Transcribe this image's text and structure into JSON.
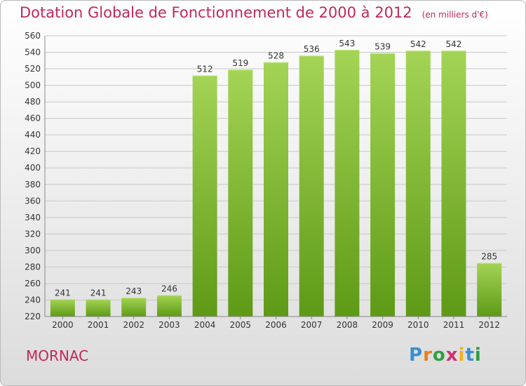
{
  "title": "Dotation Globale de Fonctionnement de 2000 à 2012",
  "unit": "(en milliers d'€)",
  "commune": "MORNAC",
  "logo": {
    "letters": [
      "P",
      "r",
      "o",
      "x",
      "i",
      "t",
      "i"
    ],
    "colors": [
      "#3a8fd0",
      "#e87f1a",
      "#2e9e44",
      "#d22f6e",
      "#f2b01e",
      "#3a8fd0",
      "#2e9e44"
    ]
  },
  "colors": {
    "bar_light": "#a4d455",
    "bar_dark": "#5e9a16",
    "grid": "#c8c8c8",
    "accent": "#c0285a"
  },
  "chart_data": {
    "type": "bar",
    "categories": [
      "2000",
      "2001",
      "2002",
      "2003",
      "2004",
      "2005",
      "2006",
      "2007",
      "2008",
      "2009",
      "2010",
      "2011",
      "2012"
    ],
    "values": [
      241,
      241,
      243,
      246,
      512,
      519,
      528,
      536,
      543,
      539,
      542,
      542,
      285
    ],
    "ylim": [
      220,
      560
    ],
    "ytick_step": 20,
    "grid": true
  }
}
